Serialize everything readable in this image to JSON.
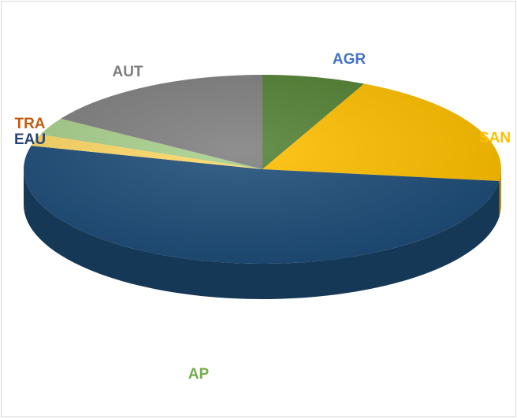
{
  "chart_data": {
    "type": "pie",
    "categories": [
      "AGR",
      "SAN",
      "AP",
      "EAU",
      "TRA",
      "AUT"
    ],
    "values": [
      7,
      20,
      52,
      2,
      3,
      16
    ],
    "colors": [
      "#548235",
      "#ffc000",
      "#1f4e79",
      "#ffd966",
      "#a9d18e",
      "#808080"
    ],
    "label_colors": [
      "#4472c4",
      "#ffc000",
      "#70ad47",
      "#264478",
      "#c55a11",
      "#7f7f7f"
    ]
  }
}
